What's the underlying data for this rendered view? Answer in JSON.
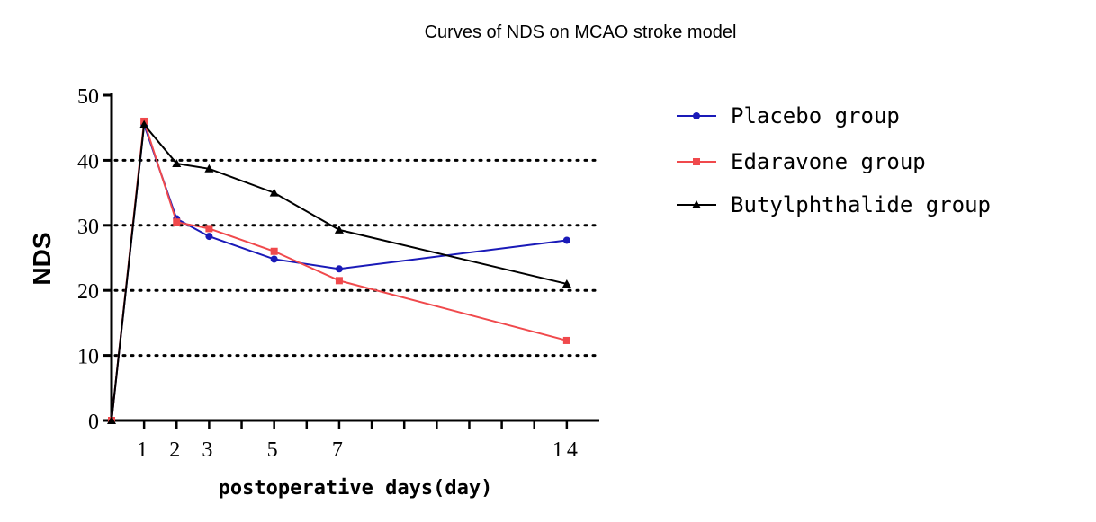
{
  "chart_data": {
    "type": "line",
    "title": "Curves of NDS on MCAO stroke model",
    "xlabel": "postoperative days(day)",
    "ylabel": "NDS",
    "x": [
      0,
      1,
      2,
      3,
      5,
      7,
      14
    ],
    "x_tick_labels": [
      "1",
      "2",
      "3",
      "5",
      "7",
      "14"
    ],
    "x_tick_values": [
      1,
      2,
      3,
      5,
      7,
      14
    ],
    "xlim": [
      0,
      15
    ],
    "y_ticks": [
      0,
      10,
      20,
      30,
      40,
      50
    ],
    "ylim": [
      0,
      50
    ],
    "grid": "dotted horizontal at 10, 20, 30, 40",
    "legend_position": "right",
    "series": [
      {
        "name": "Placebo group",
        "color": "#1a1ab8",
        "marker": "circle",
        "values": [
          0,
          45.5,
          31,
          28.3,
          24.8,
          23.3,
          27.7
        ]
      },
      {
        "name": "Edaravone group",
        "color": "#f0494c",
        "marker": "square",
        "values": [
          0,
          46,
          30.5,
          29.5,
          26,
          21.5,
          12.3
        ]
      },
      {
        "name": "Butylphthalide group",
        "color": "#000000",
        "marker": "triangle",
        "values": [
          0,
          45.5,
          39.5,
          38.7,
          35,
          29.3,
          21
        ]
      }
    ]
  }
}
